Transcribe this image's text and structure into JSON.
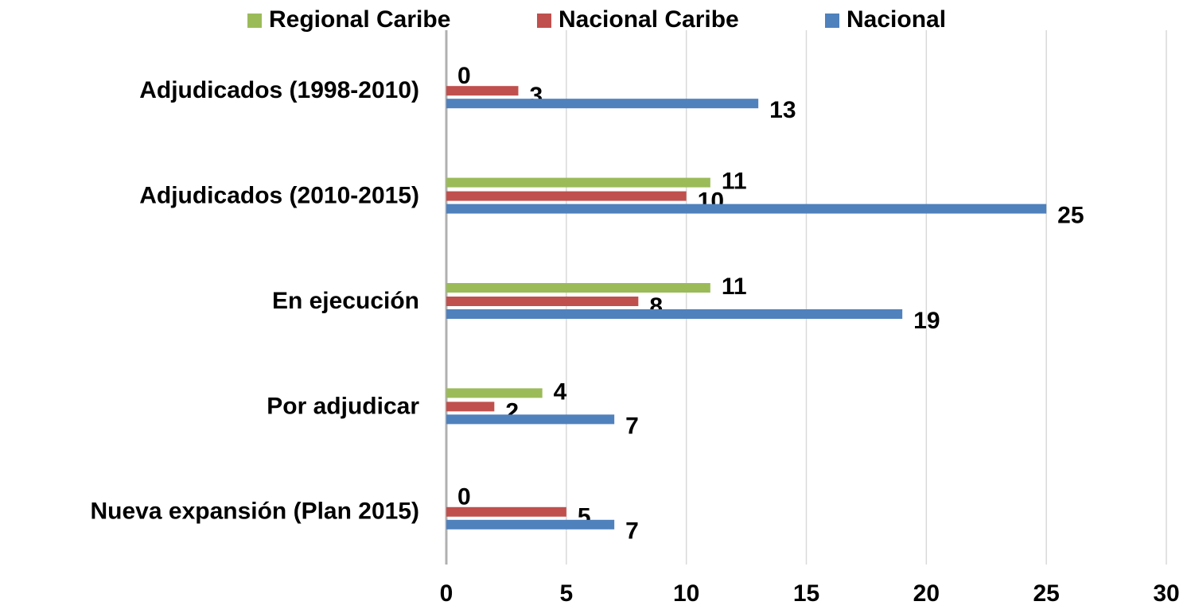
{
  "chart_data": {
    "type": "hbar",
    "categories": [
      "Adjudicados (1998-2010)",
      "Adjudicados (2010-2015)",
      "En ejecución",
      "Por adjudicar",
      "Nueva expansión (Plan 2015)"
    ],
    "series": [
      {
        "name": "Regional Caribe",
        "color": "#9bbb59",
        "values": [
          0,
          11,
          11,
          4,
          0
        ]
      },
      {
        "name": "Nacional Caribe",
        "color": "#c0504d",
        "values": [
          3,
          10,
          8,
          2,
          5
        ]
      },
      {
        "name": "Nacional",
        "color": "#4f81bd",
        "values": [
          13,
          25,
          19,
          7,
          7
        ]
      }
    ],
    "xlim": [
      0,
      30
    ],
    "xticks": [
      0,
      5,
      10,
      15,
      20,
      25,
      30
    ],
    "grid": true,
    "legend": "top"
  }
}
